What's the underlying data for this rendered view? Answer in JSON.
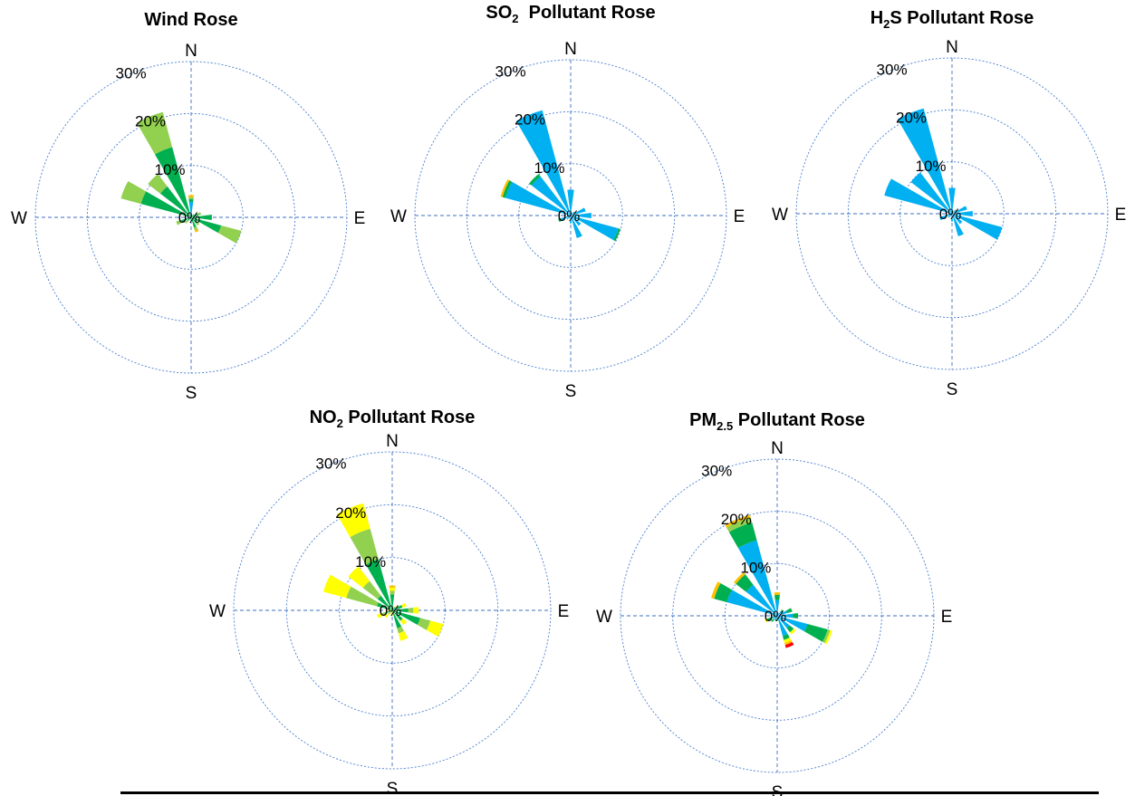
{
  "colors": {
    "light_green": "#92d050",
    "green": "#00b050",
    "blue": "#00b0f0",
    "yellow": "#ffff00",
    "orange": "#ffc000",
    "red": "#ff0000",
    "grid": "#4a7fd0"
  },
  "chart_data": [
    {
      "type": "polar-bar",
      "title": "Wind Rose",
      "title_parts": [
        {
          "text": "Wind Rose",
          "sub": false
        }
      ],
      "directions": [
        "N",
        "NNE",
        "NE",
        "ENE",
        "E",
        "ESE",
        "SE",
        "SSE",
        "S",
        "SSW",
        "SW",
        "WSW",
        "W",
        "WNW",
        "NW",
        "NNW"
      ],
      "direction_labels": {
        "N": "N",
        "E": "E",
        "S": "S",
        "W": "W"
      },
      "radial_ticks": [
        "0%",
        "10%",
        "20%",
        "30%"
      ],
      "rmax": 30,
      "grid": true,
      "stacks": [
        [
          [
            3.0,
            "blue"
          ],
          [
            0.5,
            "green"
          ],
          [
            0.4,
            "light_green"
          ],
          [
            0.4,
            "orange"
          ]
        ],
        [
          [
            0.5,
            "green"
          ]
        ],
        [
          [
            0.8,
            "green"
          ]
        ],
        [
          [
            1.5,
            "green"
          ],
          [
            0.5,
            "light_green"
          ]
        ],
        [
          [
            4.0,
            "green"
          ]
        ],
        [
          [
            6.0,
            "green"
          ],
          [
            4.0,
            "light_green"
          ]
        ],
        [
          [
            1.5,
            "green"
          ],
          [
            0.5,
            "light_green"
          ]
        ],
        [
          [
            2.0,
            "green"
          ],
          [
            0.6,
            "light_green"
          ],
          [
            0.4,
            "orange"
          ]
        ],
        [
          [
            0.5,
            "green"
          ]
        ],
        [
          [
            0.5,
            "green"
          ]
        ],
        [
          [
            1.0,
            "green"
          ],
          [
            0.5,
            "light_green"
          ]
        ],
        [
          [
            2.0,
            "green"
          ],
          [
            1.0,
            "light_green"
          ]
        ],
        [
          [
            0.5,
            "green"
          ]
        ],
        [
          [
            10.0,
            "green"
          ],
          [
            4.0,
            "light_green"
          ]
        ],
        [
          [
            7.5,
            "green"
          ],
          [
            3.0,
            "light_green"
          ]
        ],
        [
          [
            14.0,
            "green"
          ],
          [
            7.0,
            "light_green"
          ]
        ]
      ]
    },
    {
      "type": "polar-bar",
      "title": "SO2 Pollutant Rose",
      "title_parts": [
        {
          "text": "SO",
          "sub": false
        },
        {
          "text": "2",
          "sub": true
        },
        {
          "text": "  Pollutant Rose",
          "sub": false
        }
      ],
      "directions": [
        "N",
        "NNE",
        "NE",
        "ENE",
        "E",
        "ESE",
        "SE",
        "SSE",
        "S",
        "SSW",
        "SW",
        "WSW",
        "W",
        "WNW",
        "NW",
        "NNW"
      ],
      "direction_labels": {
        "N": "N",
        "E": "E",
        "S": "S",
        "W": "W"
      },
      "radial_ticks": [
        "0%",
        "10%",
        "20%",
        "30%"
      ],
      "rmax": 30,
      "grid": true,
      "stacks": [
        [
          [
            5.0,
            "blue"
          ]
        ],
        [
          [
            0.6,
            "blue"
          ]
        ],
        [
          [
            1.0,
            "blue"
          ]
        ],
        [
          [
            3.0,
            "blue"
          ]
        ],
        [
          [
            4.0,
            "blue"
          ]
        ],
        [
          [
            9.5,
            "blue"
          ],
          [
            0.4,
            "green"
          ]
        ],
        [
          [
            2.5,
            "blue"
          ]
        ],
        [
          [
            4.5,
            "blue"
          ]
        ],
        [
          [
            1.5,
            "blue"
          ]
        ],
        [
          [
            0.6,
            "blue"
          ]
        ],
        [
          [
            1.0,
            "blue"
          ]
        ],
        [
          [
            2.0,
            "blue"
          ],
          [
            0.5,
            "green"
          ]
        ],
        [
          [
            0.6,
            "blue"
          ]
        ],
        [
          [
            13.0,
            "blue"
          ],
          [
            0.6,
            "green"
          ],
          [
            0.4,
            "orange"
          ]
        ],
        [
          [
            9.5,
            "blue"
          ],
          [
            0.6,
            "green"
          ]
        ],
        [
          [
            21.0,
            "blue"
          ]
        ]
      ]
    },
    {
      "type": "polar-bar",
      "title": "H2S Pollutant Rose",
      "title_parts": [
        {
          "text": "H",
          "sub": false
        },
        {
          "text": "2",
          "sub": true
        },
        {
          "text": "S Pollutant Rose",
          "sub": false
        }
      ],
      "directions": [
        "N",
        "NNE",
        "NE",
        "ENE",
        "E",
        "ESE",
        "SE",
        "SSE",
        "S",
        "SSW",
        "SW",
        "WSW",
        "W",
        "WNW",
        "NW",
        "NNW"
      ],
      "direction_labels": {
        "N": "N",
        "E": "E",
        "S": "S",
        "W": "W"
      },
      "radial_ticks": [
        "0%",
        "10%",
        "20%",
        "30%"
      ],
      "rmax": 30,
      "grid": true,
      "stacks": [
        [
          [
            5.0,
            "blue"
          ]
        ],
        [
          [
            0.6,
            "blue"
          ]
        ],
        [
          [
            1.0,
            "blue"
          ]
        ],
        [
          [
            3.0,
            "blue"
          ]
        ],
        [
          [
            4.0,
            "blue"
          ]
        ],
        [
          [
            10.0,
            "blue"
          ]
        ],
        [
          [
            2.5,
            "blue"
          ]
        ],
        [
          [
            4.5,
            "blue"
          ]
        ],
        [
          [
            1.5,
            "blue"
          ]
        ],
        [
          [
            0.6,
            "blue"
          ]
        ],
        [
          [
            1.0,
            "blue"
          ]
        ],
        [
          [
            2.5,
            "blue"
          ]
        ],
        [
          [
            0.6,
            "blue"
          ]
        ],
        [
          [
            13.5,
            "blue"
          ]
        ],
        [
          [
            10.0,
            "blue"
          ]
        ],
        [
          [
            21.0,
            "blue"
          ]
        ]
      ]
    },
    {
      "type": "polar-bar",
      "title": "NO2 Pollutant Rose",
      "title_parts": [
        {
          "text": "NO",
          "sub": false
        },
        {
          "text": "2",
          "sub": true
        },
        {
          "text": " Pollutant Rose",
          "sub": false
        }
      ],
      "directions": [
        "N",
        "NNE",
        "NE",
        "ENE",
        "E",
        "ESE",
        "SE",
        "SSE",
        "S",
        "SSW",
        "SW",
        "WSW",
        "W",
        "WNW",
        "NW",
        "NNW"
      ],
      "direction_labels": {
        "N": "N",
        "E": "E",
        "S": "S",
        "W": "W"
      },
      "radial_ticks": [
        "0%",
        "10%",
        "20%",
        "30%"
      ],
      "rmax": 30,
      "grid": true,
      "stacks": [
        [
          [
            3.0,
            "green"
          ],
          [
            0.7,
            "light_green"
          ],
          [
            0.6,
            "yellow"
          ],
          [
            0.4,
            "orange"
          ]
        ],
        [
          [
            0.5,
            "green"
          ],
          [
            0.3,
            "yellow"
          ]
        ],
        [
          [
            0.8,
            "green"
          ],
          [
            0.3,
            "yellow"
          ]
        ],
        [
          [
            2.0,
            "green"
          ],
          [
            0.8,
            "yellow"
          ]
        ],
        [
          [
            3.0,
            "green"
          ],
          [
            1.0,
            "light_green"
          ],
          [
            1.0,
            "yellow"
          ]
        ],
        [
          [
            5.5,
            "green"
          ],
          [
            2.0,
            "light_green"
          ],
          [
            2.5,
            "yellow"
          ]
        ],
        [
          [
            2.5,
            "green"
          ],
          [
            1.0,
            "yellow"
          ]
        ],
        [
          [
            3.5,
            "green"
          ],
          [
            1.0,
            "light_green"
          ],
          [
            1.5,
            "yellow"
          ]
        ],
        [
          [
            1.0,
            "yellow"
          ]
        ],
        [
          [
            0.8,
            "yellow"
          ]
        ],
        [
          [
            1.0,
            "light_green"
          ],
          [
            0.8,
            "yellow"
          ]
        ],
        [
          [
            1.0,
            "green"
          ],
          [
            1.0,
            "light_green"
          ],
          [
            1.0,
            "yellow"
          ]
        ],
        [
          [
            1.0,
            "yellow"
          ]
        ],
        [
          [
            3.0,
            "green"
          ],
          [
            6.0,
            "light_green"
          ],
          [
            4.5,
            "yellow"
          ]
        ],
        [
          [
            3.5,
            "green"
          ],
          [
            3.5,
            "light_green"
          ],
          [
            3.5,
            "yellow"
          ]
        ],
        [
          [
            10.0,
            "green"
          ],
          [
            6.0,
            "light_green"
          ],
          [
            5.0,
            "yellow"
          ]
        ]
      ]
    },
    {
      "type": "polar-bar",
      "title": "PM2.5 Pollutant Rose",
      "title_parts": [
        {
          "text": "PM",
          "sub": false
        },
        {
          "text": "2.5",
          "sub": true
        },
        {
          "text": " Pollutant Rose",
          "sub": false
        }
      ],
      "directions": [
        "N",
        "NNE",
        "NE",
        "ENE",
        "E",
        "ESE",
        "SE",
        "SSE",
        "S",
        "SSW",
        "SW",
        "WSW",
        "W",
        "WNW",
        "NW",
        "NNW"
      ],
      "direction_labels": {
        "N": "N",
        "E": "E",
        "S": "S",
        "W": "W"
      },
      "radial_ticks": [
        "0%",
        "10%",
        "20%",
        "30%"
      ],
      "rmax": 30,
      "grid": true,
      "stacks": [
        [
          [
            3.0,
            "blue"
          ],
          [
            1.0,
            "green"
          ],
          [
            0.5,
            "orange"
          ]
        ],
        [
          [
            0.6,
            "blue"
          ]
        ],
        [
          [
            1.0,
            "blue"
          ],
          [
            0.5,
            "green"
          ]
        ],
        [
          [
            2.0,
            "blue"
          ],
          [
            1.0,
            "green"
          ]
        ],
        [
          [
            3.0,
            "blue"
          ],
          [
            1.0,
            "green"
          ]
        ],
        [
          [
            6.0,
            "blue"
          ],
          [
            4.0,
            "green"
          ],
          [
            0.5,
            "light_green"
          ],
          [
            0.4,
            "yellow"
          ]
        ],
        [
          [
            3.0,
            "blue"
          ],
          [
            1.0,
            "green"
          ],
          [
            0.5,
            "yellow"
          ]
        ],
        [
          [
            4.0,
            "blue"
          ],
          [
            0.8,
            "green"
          ],
          [
            0.6,
            "yellow"
          ],
          [
            0.4,
            "orange"
          ],
          [
            0.6,
            "red"
          ]
        ],
        [
          [
            1.0,
            "blue"
          ]
        ],
        [
          [
            0.5,
            "blue"
          ],
          [
            0.5,
            "green"
          ]
        ],
        [
          [
            1.0,
            "blue"
          ],
          [
            0.5,
            "green"
          ]
        ],
        [
          [
            1.0,
            "blue"
          ],
          [
            1.0,
            "green"
          ],
          [
            0.5,
            "yellow"
          ]
        ],
        [
          [
            0.6,
            "blue"
          ]
        ],
        [
          [
            10.0,
            "blue"
          ],
          [
            2.5,
            "green"
          ],
          [
            0.6,
            "orange"
          ]
        ],
        [
          [
            7.5,
            "blue"
          ],
          [
            2.5,
            "green"
          ],
          [
            0.5,
            "orange"
          ]
        ],
        [
          [
            15.0,
            "blue"
          ],
          [
            3.5,
            "green"
          ],
          [
            1.0,
            "light_green"
          ],
          [
            0.5,
            "orange"
          ]
        ]
      ]
    }
  ]
}
